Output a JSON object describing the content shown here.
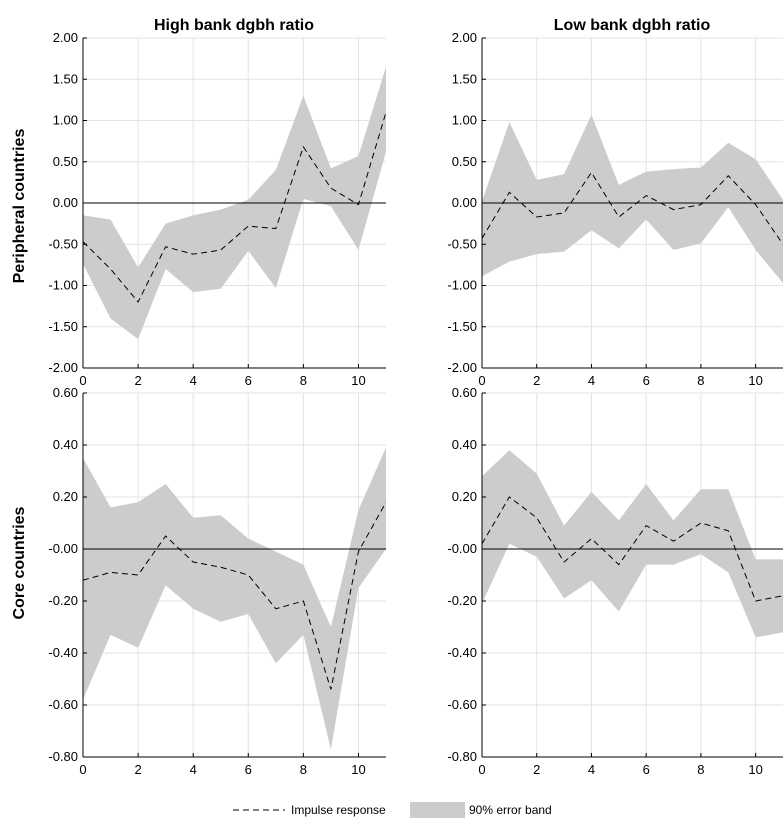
{
  "legend": {
    "impulse_label": "Impulse response",
    "band_label": "90% error band"
  },
  "colors": {
    "band": "#cccccc",
    "line": "#000000",
    "grid": "#e3e3e3"
  },
  "chart_data": [
    {
      "type": "line",
      "title": "High bank dgbh ratio",
      "ylabel": "Peripheral countries",
      "xlim": [
        0,
        11
      ],
      "ylim": [
        -2.0,
        2.0
      ],
      "x_ticks": [
        0,
        2,
        4,
        6,
        8,
        10
      ],
      "y_ticks": [
        "2.00",
        "1.50",
        "1.00",
        "0.50",
        "0.00",
        "-0.50",
        "-1.00",
        "-1.50",
        "-2.00"
      ],
      "x": [
        0,
        1,
        2,
        3,
        4,
        5,
        6,
        7,
        8,
        9,
        10,
        11
      ],
      "series": [
        {
          "name": "Impulse response",
          "values": [
            -0.47,
            -0.8,
            -1.2,
            -0.53,
            -0.62,
            -0.57,
            -0.28,
            -0.31,
            0.68,
            0.18,
            -0.02,
            1.1
          ]
        },
        {
          "name": "90% error band upper",
          "values": [
            -0.15,
            -0.2,
            -0.78,
            -0.25,
            -0.15,
            -0.08,
            0.04,
            0.4,
            1.3,
            0.42,
            0.57,
            1.65
          ]
        },
        {
          "name": "90% error band lower",
          "values": [
            -0.74,
            -1.4,
            -1.65,
            -0.8,
            -1.08,
            -1.04,
            -0.58,
            -1.03,
            0.05,
            -0.04,
            -0.57,
            0.62
          ]
        }
      ]
    },
    {
      "type": "line",
      "title": "Low bank dgbh ratio",
      "ylabel": "",
      "xlim": [
        0,
        11
      ],
      "ylim": [
        -2.0,
        2.0
      ],
      "x_ticks": [
        0,
        2,
        4,
        6,
        8,
        10
      ],
      "y_ticks": [
        "2.00",
        "1.50",
        "1.00",
        "0.50",
        "0.00",
        "-0.50",
        "-1.00",
        "-1.50",
        "-2.00"
      ],
      "x": [
        0,
        1,
        2,
        3,
        4,
        5,
        6,
        7,
        8,
        9,
        10,
        11
      ],
      "series": [
        {
          "name": "Impulse response",
          "values": [
            -0.43,
            0.13,
            -0.17,
            -0.12,
            0.37,
            -0.17,
            0.09,
            -0.08,
            -0.02,
            0.33,
            -0.02,
            -0.5
          ]
        },
        {
          "name": "90% error band upper",
          "values": [
            0.02,
            0.98,
            0.28,
            0.35,
            1.07,
            0.22,
            0.38,
            0.41,
            0.43,
            0.73,
            0.53,
            0.04
          ]
        },
        {
          "name": "90% error band lower",
          "values": [
            -0.89,
            -0.71,
            -0.62,
            -0.59,
            -0.33,
            -0.55,
            -0.2,
            -0.57,
            -0.49,
            -0.05,
            -0.57,
            -0.97
          ]
        }
      ]
    },
    {
      "type": "line",
      "title": "",
      "ylabel": "Core countries",
      "xlim": [
        0,
        11
      ],
      "ylim": [
        -0.8,
        0.6
      ],
      "x_ticks": [
        0,
        2,
        4,
        6,
        8,
        10
      ],
      "y_ticks": [
        "0.60",
        "0.40",
        "0.20",
        "-0.00",
        "-0.20",
        "-0.40",
        "-0.60",
        "-0.80"
      ],
      "x": [
        0,
        1,
        2,
        3,
        4,
        5,
        6,
        7,
        8,
        9,
        10,
        11
      ],
      "series": [
        {
          "name": "Impulse response",
          "values": [
            -0.12,
            -0.09,
            -0.1,
            0.05,
            -0.05,
            -0.07,
            -0.1,
            -0.23,
            -0.2,
            -0.54,
            -0.01,
            0.18
          ]
        },
        {
          "name": "90% error band upper",
          "values": [
            0.35,
            0.16,
            0.18,
            0.25,
            0.12,
            0.13,
            0.04,
            -0.01,
            -0.06,
            -0.3,
            0.15,
            0.39
          ]
        },
        {
          "name": "90% error band lower",
          "values": [
            -0.58,
            -0.33,
            -0.38,
            -0.14,
            -0.23,
            -0.28,
            -0.25,
            -0.44,
            -0.33,
            -0.77,
            -0.15,
            0.0
          ]
        }
      ]
    },
    {
      "type": "line",
      "title": "",
      "ylabel": "",
      "xlim": [
        0,
        11
      ],
      "ylim": [
        -0.8,
        0.6
      ],
      "x_ticks": [
        0,
        2,
        4,
        6,
        8,
        10
      ],
      "y_ticks": [
        "0.60",
        "0.40",
        "0.20",
        "-0.00",
        "-0.20",
        "-0.40",
        "-0.60",
        "-0.80"
      ],
      "x": [
        0,
        1,
        2,
        3,
        4,
        5,
        6,
        7,
        8,
        9,
        10,
        11
      ],
      "series": [
        {
          "name": "Impulse response",
          "values": [
            0.02,
            0.2,
            0.12,
            -0.05,
            0.04,
            -0.06,
            0.09,
            0.03,
            0.1,
            0.07,
            -0.2,
            -0.18
          ]
        },
        {
          "name": "90% error band upper",
          "values": [
            0.28,
            0.38,
            0.29,
            0.09,
            0.22,
            0.11,
            0.25,
            0.11,
            0.23,
            0.23,
            -0.04,
            -0.04
          ]
        },
        {
          "name": "90% error band lower",
          "values": [
            -0.21,
            0.02,
            -0.03,
            -0.19,
            -0.12,
            -0.24,
            -0.06,
            -0.06,
            -0.02,
            -0.09,
            -0.34,
            -0.32
          ]
        }
      ]
    }
  ]
}
